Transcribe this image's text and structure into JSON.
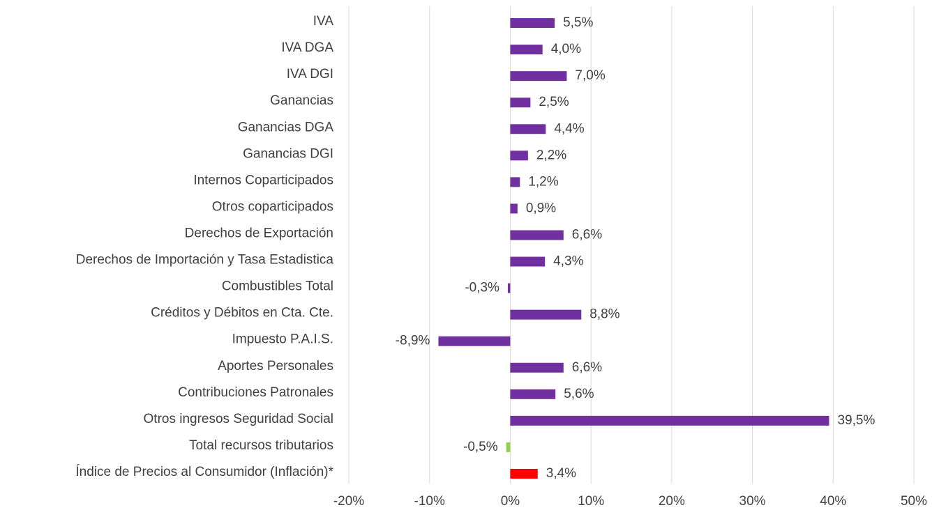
{
  "chart_data": {
    "type": "barh",
    "categories": [
      "IVA",
      "IVA DGA",
      "IVA DGI",
      "Ganancias",
      "Ganancias DGA",
      "Ganancias DGI",
      "Internos Coparticipados",
      "Otros coparticipados",
      "Derechos de Exportación",
      "Derechos de Importación y Tasa Estadistica",
      "Combustibles Total",
      "Créditos y Débitos en Cta. Cte.",
      "Impuesto P.A.I.S.",
      "Aportes Personales",
      "Contribuciones Patronales",
      "Otros ingresos Seguridad Social",
      "Total recursos tributarios",
      "Índice de Precios al Consumidor (Inflación)*"
    ],
    "values": [
      5.5,
      4.0,
      7.0,
      2.5,
      4.4,
      2.2,
      1.2,
      0.9,
      6.6,
      4.3,
      -0.3,
      8.8,
      -8.9,
      6.6,
      5.6,
      39.5,
      -0.5,
      3.4
    ],
    "value_labels": [
      "5,5%",
      "4,0%",
      "7,0%",
      "2,5%",
      "4,4%",
      "2,2%",
      "1,2%",
      "0,9%",
      "6,6%",
      "4,3%",
      "-0,3%",
      "8,8%",
      "-8,9%",
      "6,6%",
      "5,6%",
      "39,5%",
      "-0,5%",
      "3,4%"
    ],
    "colors": [
      "#7030a0",
      "#7030a0",
      "#7030a0",
      "#7030a0",
      "#7030a0",
      "#7030a0",
      "#7030a0",
      "#7030a0",
      "#7030a0",
      "#7030a0",
      "#7030a0",
      "#7030a0",
      "#7030a0",
      "#7030a0",
      "#7030a0",
      "#7030a0",
      "#92d050",
      "#ff0000"
    ],
    "xlim": [
      -20,
      50
    ],
    "xticks": [
      {
        "value": -20,
        "label": "-20%"
      },
      {
        "value": -10,
        "label": "-10%"
      },
      {
        "value": 0,
        "label": "0%"
      },
      {
        "value": 10,
        "label": "10%"
      },
      {
        "value": 20,
        "label": "20%"
      },
      {
        "value": 30,
        "label": "30%"
      },
      {
        "value": 40,
        "label": "40%"
      },
      {
        "value": 50,
        "label": "50%"
      }
    ],
    "grid": true
  }
}
